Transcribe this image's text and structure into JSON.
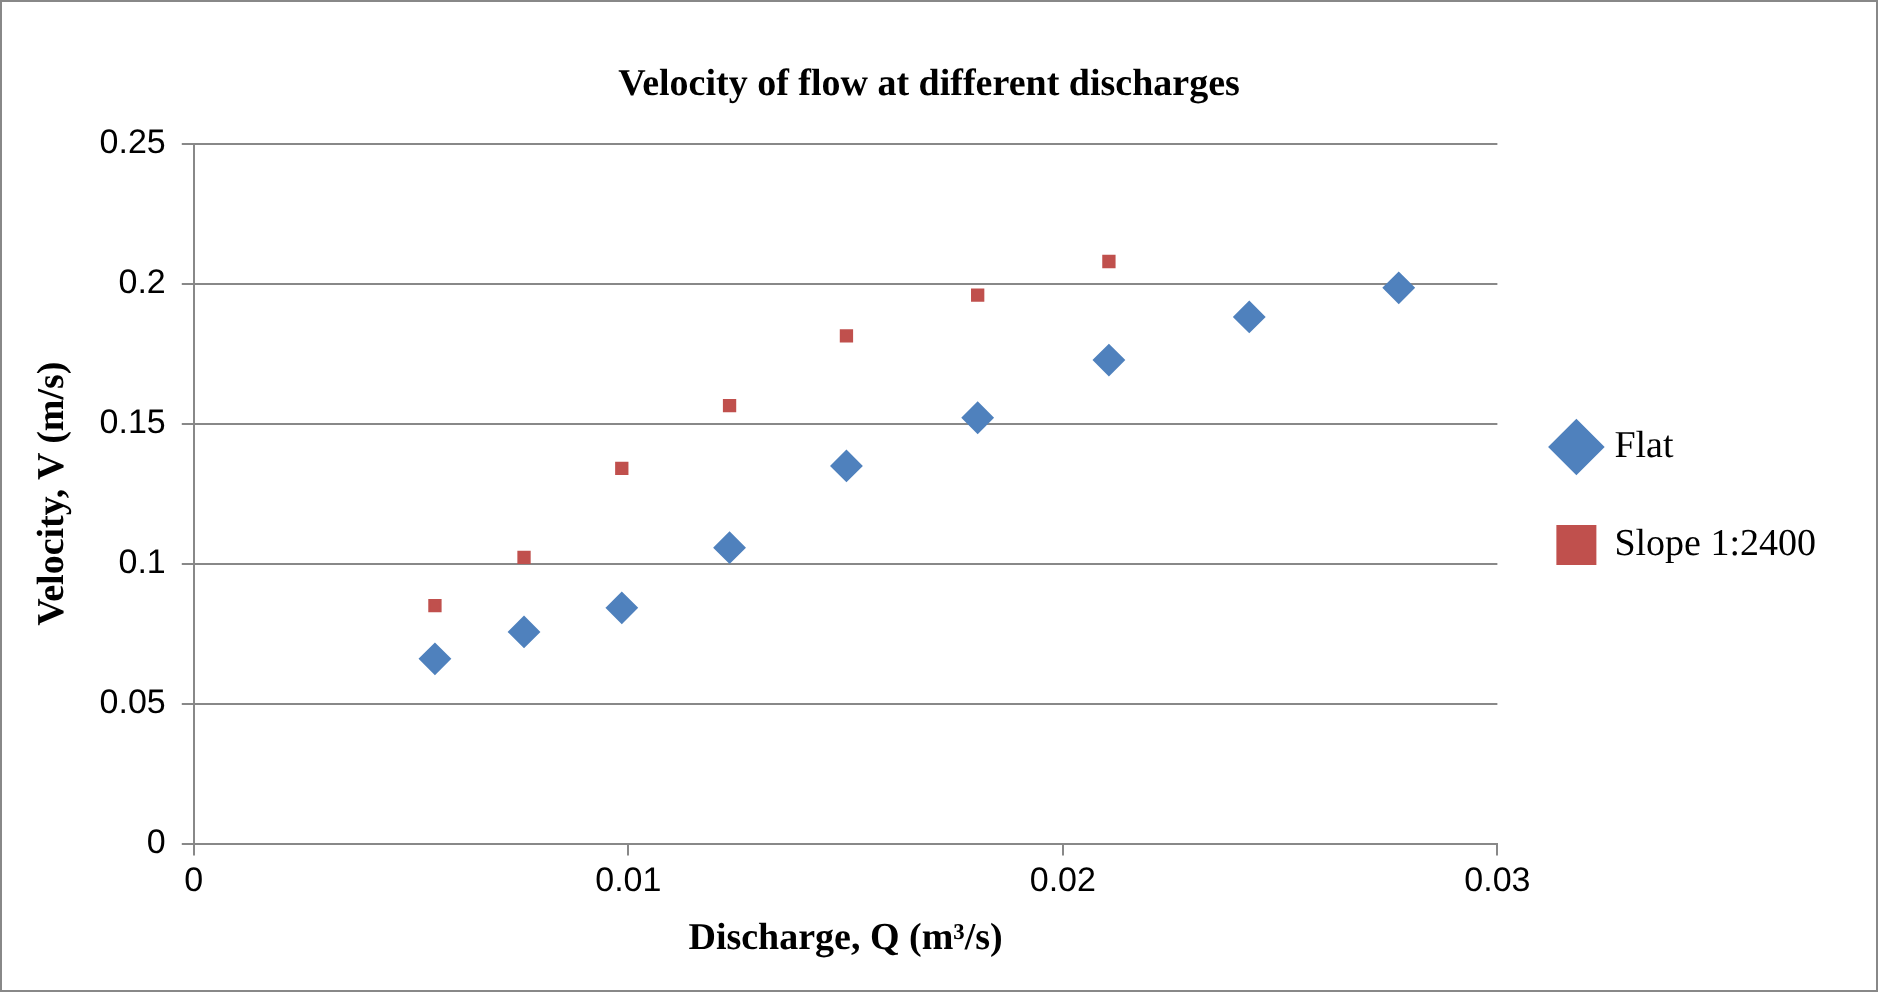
{
  "chart_data": {
    "type": "scatter",
    "title": "Velocity of flow at different discharges",
    "xlabel": "Discharge, Q (m³/s)",
    "ylabel": "Velocity, V (m/s)",
    "xlim": [
      0,
      0.03
    ],
    "xticks": [
      0,
      0.01,
      0.02,
      0.03
    ],
    "ylim": [
      0,
      0.25
    ],
    "yticks": [
      0,
      0.05,
      0.1,
      0.15,
      0.2,
      0.25
    ],
    "grid": "y",
    "legend": "right",
    "series": [
      {
        "name": "Flat",
        "color": "#4f81bd",
        "marker": "diamond",
        "x": [
          0.00555,
          0.0076,
          0.00985,
          0.01233,
          0.01502,
          0.01804,
          0.02106,
          0.02429,
          0.02773
        ],
        "values": [
          0.066,
          0.0756,
          0.0842,
          0.1057,
          0.1349,
          0.1521,
          0.1727,
          0.1881,
          0.1985
        ]
      },
      {
        "name": "Slope 1:2400",
        "color": "#c0504d",
        "marker": "square",
        "x": [
          0.00555,
          0.0076,
          0.00985,
          0.01233,
          0.01502,
          0.01804,
          0.02106
        ],
        "values": [
          0.085,
          0.1022,
          0.134,
          0.1564,
          0.1813,
          0.1959,
          0.2079
        ]
      }
    ]
  }
}
